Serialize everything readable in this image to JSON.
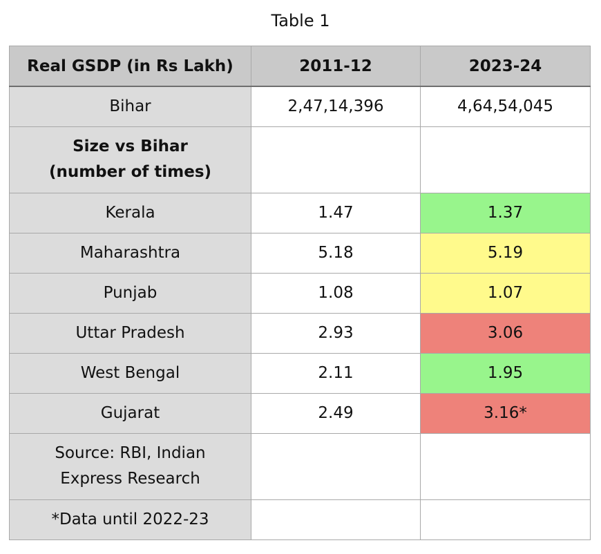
{
  "title": "Table 1",
  "colors": {
    "header_bg": "#c9c9c9",
    "label_bg": "#dcdcdc",
    "green": "#98f58c",
    "yellow": "#fffa8c",
    "red": "#ee827a"
  },
  "chart_data": {
    "type": "table",
    "title": "Table 1",
    "columns": [
      "Real GSDP (in Rs Lakh)",
      "2011-12",
      "2023-24"
    ],
    "rows": [
      {
        "label": "Bihar",
        "values": [
          "2,47,14,396",
          "4,64,54,045"
        ],
        "highlight": null,
        "bold": false
      },
      {
        "label": "Size vs Bihar (number of times)",
        "values": [
          "",
          ""
        ],
        "highlight": null,
        "bold": true
      },
      {
        "label": "Kerala",
        "values": [
          "1.47",
          "1.37"
        ],
        "highlight": "green",
        "bold": false
      },
      {
        "label": "Maharashtra",
        "values": [
          "5.18",
          "5.19"
        ],
        "highlight": "yellow",
        "bold": false
      },
      {
        "label": "Punjab",
        "values": [
          "1.08",
          "1.07"
        ],
        "highlight": "yellow",
        "bold": false
      },
      {
        "label": "Uttar Pradesh",
        "values": [
          "2.93",
          "3.06"
        ],
        "highlight": "red",
        "bold": false
      },
      {
        "label": "West Bengal",
        "values": [
          "2.11",
          "1.95"
        ],
        "highlight": "green",
        "bold": false
      },
      {
        "label": "Gujarat",
        "values": [
          "2.49",
          "3.16*"
        ],
        "highlight": "red",
        "bold": false
      },
      {
        "label": "Source: RBI, Indian Express Research",
        "values": [
          "",
          ""
        ],
        "highlight": null,
        "bold": false
      },
      {
        "label": "*Data until 2022-23",
        "values": [
          "",
          ""
        ],
        "highlight": null,
        "bold": false
      }
    ]
  }
}
